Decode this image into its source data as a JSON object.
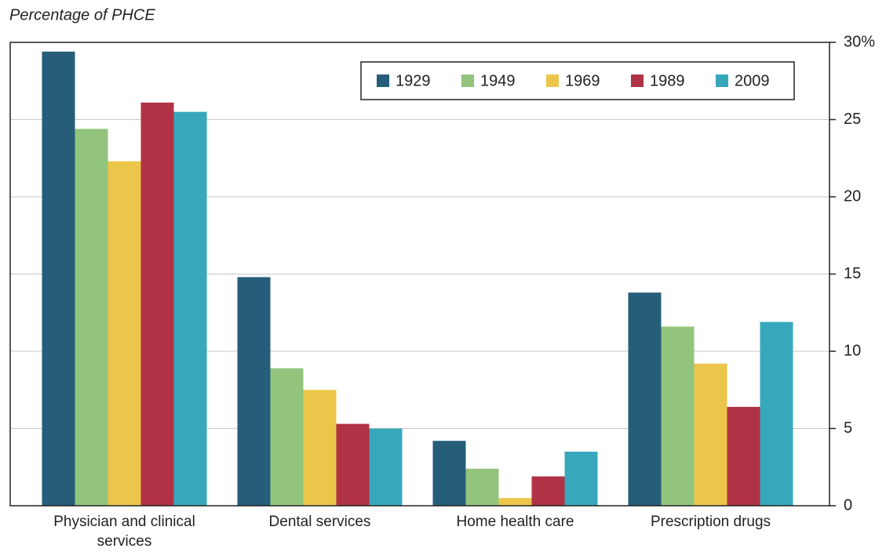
{
  "chart_data": {
    "type": "bar",
    "y_label": "Percentage of PHCE",
    "categories": [
      "Physician and clinical services",
      "Dental services",
      "Home health care",
      "Prescription drugs"
    ],
    "series": [
      {
        "name": "1929",
        "color": "#265e7a",
        "values": [
          29.4,
          14.8,
          4.2,
          13.8
        ]
      },
      {
        "name": "1949",
        "color": "#93c47d",
        "values": [
          24.4,
          8.9,
          2.4,
          11.6
        ]
      },
      {
        "name": "1969",
        "color": "#ecc64a",
        "values": [
          22.3,
          7.5,
          0.5,
          9.2
        ]
      },
      {
        "name": "1989",
        "color": "#b03245",
        "values": [
          26.1,
          5.3,
          1.9,
          6.4
        ]
      },
      {
        "name": "2009",
        "color": "#37a8bc",
        "values": [
          25.5,
          5.0,
          3.5,
          11.9
        ]
      }
    ],
    "ylim": [
      0,
      30
    ],
    "yticks": [
      0,
      5,
      10,
      15,
      20,
      25,
      {
        "value": 30,
        "label": "30%"
      }
    ],
    "grid": true,
    "legend": "top-right"
  }
}
